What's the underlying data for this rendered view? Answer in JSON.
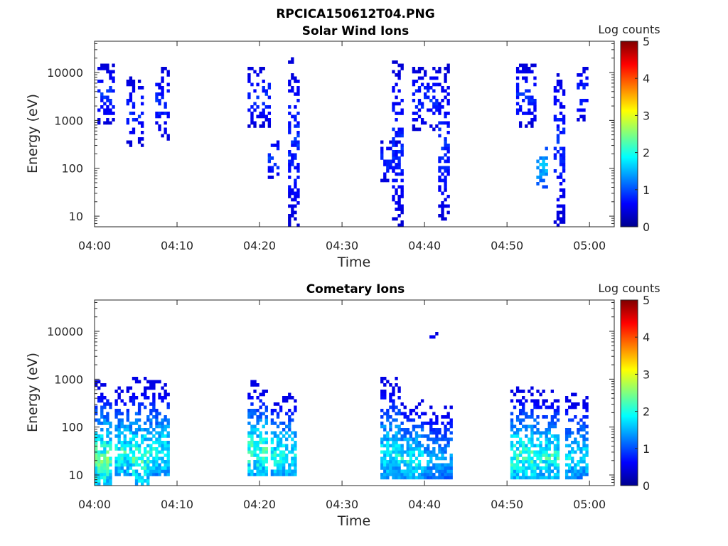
{
  "figure_title": "RPCICA150612T04.PNG",
  "chart_data": [
    {
      "type": "heatmap",
      "title": "Solar Wind Ions",
      "xlabel": "Time",
      "ylabel": "Energy (eV)",
      "y_scale": "log",
      "y_ticks": [
        10,
        100,
        1000,
        10000
      ],
      "y_tick_labels": [
        "10",
        "100",
        "1000",
        "10000"
      ],
      "ylim": [
        6,
        45000
      ],
      "x_ticks": [
        "04:00",
        "04:10",
        "04:20",
        "04:30",
        "04:40",
        "04:50",
        "05:00"
      ],
      "xlim_minutes": [
        0,
        63
      ],
      "colorbar": {
        "label": "Log counts",
        "range": [
          0,
          5
        ],
        "ticks": [
          "0",
          "1",
          "2",
          "3",
          "4",
          "5"
        ],
        "colormap": "jet"
      },
      "features": [
        {
          "time_min": [
            0.5,
            2.5
          ],
          "energy_eV": [
            800,
            15000
          ],
          "log_counts": [
            0.3,
            1.0
          ]
        },
        {
          "time_min": [
            4.0,
            6.0
          ],
          "energy_eV": [
            300,
            8000
          ],
          "log_counts": [
            0.3,
            1.0
          ]
        },
        {
          "time_min": [
            7.5,
            9.0
          ],
          "energy_eV": [
            400,
            13000
          ],
          "log_counts": [
            0.3,
            1.0
          ]
        },
        {
          "time_min": [
            18.5,
            21.5
          ],
          "energy_eV": [
            700,
            14000
          ],
          "log_counts": [
            0.3,
            1.0
          ]
        },
        {
          "time_min": [
            21.0,
            22.5
          ],
          "energy_eV": [
            60,
            400
          ],
          "log_counts": [
            0.3,
            1.2
          ]
        },
        {
          "time_min": [
            23.5,
            25.0
          ],
          "energy_eV": [
            6,
            22000
          ],
          "log_counts": [
            0.3,
            1.0
          ]
        },
        {
          "time_min": [
            34.5,
            37.0
          ],
          "energy_eV": [
            50,
            400
          ],
          "log_counts": [
            0.3,
            1.0
          ]
        },
        {
          "time_min": [
            36.0,
            37.5
          ],
          "energy_eV": [
            6,
            18000
          ],
          "log_counts": [
            0.3,
            1.0
          ]
        },
        {
          "time_min": [
            38.5,
            41.5
          ],
          "energy_eV": [
            600,
            13000
          ],
          "log_counts": [
            0.3,
            1.0
          ]
        },
        {
          "time_min": [
            41.5,
            43.0
          ],
          "energy_eV": [
            6,
            15000
          ],
          "log_counts": [
            0.3,
            1.0
          ]
        },
        {
          "time_min": [
            51.0,
            53.5
          ],
          "energy_eV": [
            700,
            16000
          ],
          "log_counts": [
            0.3,
            1.0
          ]
        },
        {
          "time_min": [
            53.5,
            55.0
          ],
          "energy_eV": [
            40,
            300
          ],
          "log_counts": [
            0.8,
            1.8
          ]
        },
        {
          "time_min": [
            55.5,
            57.0
          ],
          "energy_eV": [
            6,
            14000
          ],
          "log_counts": [
            0.3,
            1.0
          ]
        },
        {
          "time_min": [
            58.5,
            60.0
          ],
          "energy_eV": [
            900,
            14000
          ],
          "log_counts": [
            0.3,
            1.0
          ]
        }
      ]
    },
    {
      "type": "heatmap",
      "title": "Cometary Ions",
      "xlabel": "Time",
      "ylabel": "Energy (eV)",
      "y_scale": "log",
      "y_ticks": [
        10,
        100,
        1000,
        10000
      ],
      "y_tick_labels": [
        "10",
        "100",
        "1000",
        "10000"
      ],
      "ylim": [
        6,
        45000
      ],
      "x_ticks": [
        "04:00",
        "04:10",
        "04:20",
        "04:30",
        "04:40",
        "04:50",
        "05:00"
      ],
      "xlim_minutes": [
        0,
        63
      ],
      "colorbar": {
        "label": "Log counts",
        "range": [
          0,
          5
        ],
        "ticks": [
          "0",
          "1",
          "2",
          "3",
          "4",
          "5"
        ],
        "colormap": "jet"
      },
      "features": [
        {
          "time_min": [
            0.0,
            2.0
          ],
          "energy_eV": [
            6,
            1000
          ],
          "log_counts": [
            0.5,
            2.8
          ]
        },
        {
          "time_min": [
            2.5,
            4.5
          ],
          "energy_eV": [
            10,
            700
          ],
          "log_counts": [
            0.5,
            2.5
          ]
        },
        {
          "time_min": [
            4.5,
            6.5
          ],
          "energy_eV": [
            6,
            1100
          ],
          "log_counts": [
            0.5,
            2.6
          ]
        },
        {
          "time_min": [
            6.5,
            9.0
          ],
          "energy_eV": [
            10,
            900
          ],
          "log_counts": [
            0.5,
            2.3
          ]
        },
        {
          "time_min": [
            18.5,
            21.0
          ],
          "energy_eV": [
            10,
            900
          ],
          "log_counts": [
            0.5,
            2.6
          ]
        },
        {
          "time_min": [
            21.5,
            24.5
          ],
          "energy_eV": [
            10,
            500
          ],
          "log_counts": [
            0.5,
            2.4
          ]
        },
        {
          "time_min": [
            34.5,
            37.0
          ],
          "energy_eV": [
            8,
            1100
          ],
          "log_counts": [
            0.5,
            2.2
          ]
        },
        {
          "time_min": [
            37.0,
            40.0
          ],
          "energy_eV": [
            8,
            400
          ],
          "log_counts": [
            0.5,
            2.3
          ]
        },
        {
          "time_min": [
            40.0,
            43.5
          ],
          "energy_eV": [
            8,
            300
          ],
          "log_counts": [
            0.5,
            1.8
          ]
        },
        {
          "time_min": [
            50.5,
            53.5
          ],
          "energy_eV": [
            8,
            700
          ],
          "log_counts": [
            0.5,
            2.6
          ]
        },
        {
          "time_min": [
            53.5,
            56.5
          ],
          "energy_eV": [
            8,
            600
          ],
          "log_counts": [
            0.5,
            2.5
          ]
        },
        {
          "time_min": [
            57.0,
            60.0
          ],
          "energy_eV": [
            8,
            500
          ],
          "log_counts": [
            0.5,
            2.1
          ]
        },
        {
          "time_min": [
            40.5,
            41.5
          ],
          "energy_eV": [
            7500,
            10000
          ],
          "log_counts": [
            0.3,
            0.8
          ]
        }
      ]
    }
  ]
}
